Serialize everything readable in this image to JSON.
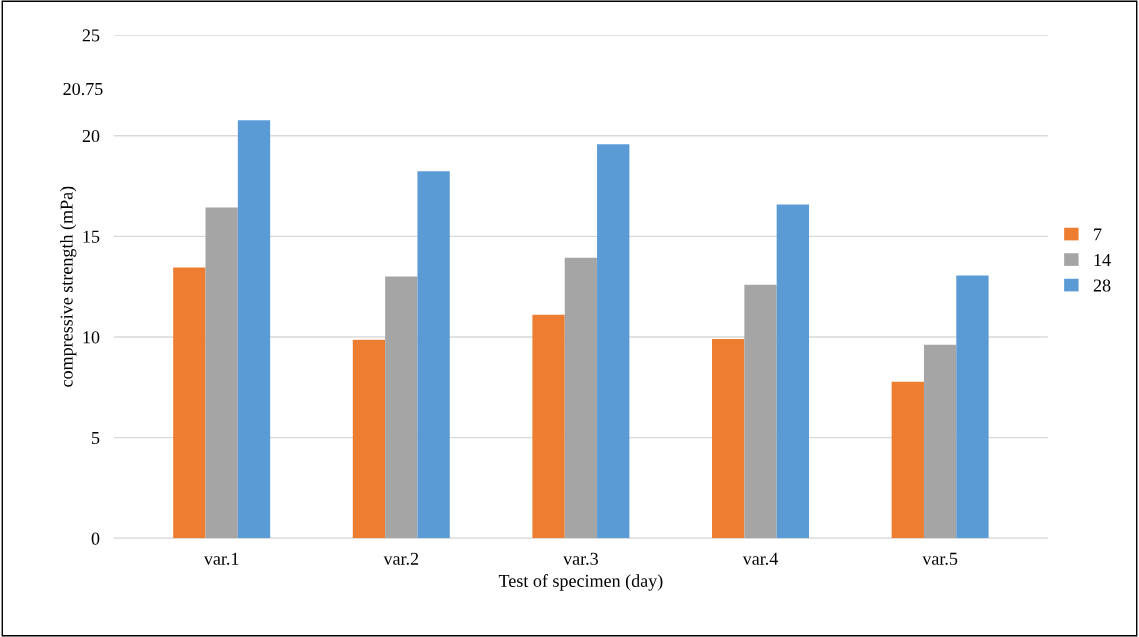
{
  "chart_data": {
    "type": "bar",
    "categories": [
      "var.1",
      "var.2",
      "var.3",
      "var.4",
      "var.5"
    ],
    "series": [
      {
        "name": "7",
        "color": "#ed7d31",
        "values": [
          13.45,
          9.86,
          11.1,
          9.9,
          7.77
        ]
      },
      {
        "name": "14",
        "color": "#a5a5a5",
        "values": [
          16.43,
          13.0,
          13.94,
          12.6,
          9.61
        ]
      },
      {
        "name": "28",
        "color": "#5b9bd5",
        "values": [
          20.77,
          18.23,
          19.57,
          16.58,
          13.05
        ]
      }
    ],
    "xlabel": "Test of specimen (day)",
    "ylabel": "compressive strength (mPa)",
    "ylim": [
      0,
      25
    ],
    "yticks": [
      0,
      5,
      10,
      15,
      20,
      25
    ],
    "annotations": [
      "20.75"
    ],
    "grid": "y",
    "legend": "right"
  }
}
